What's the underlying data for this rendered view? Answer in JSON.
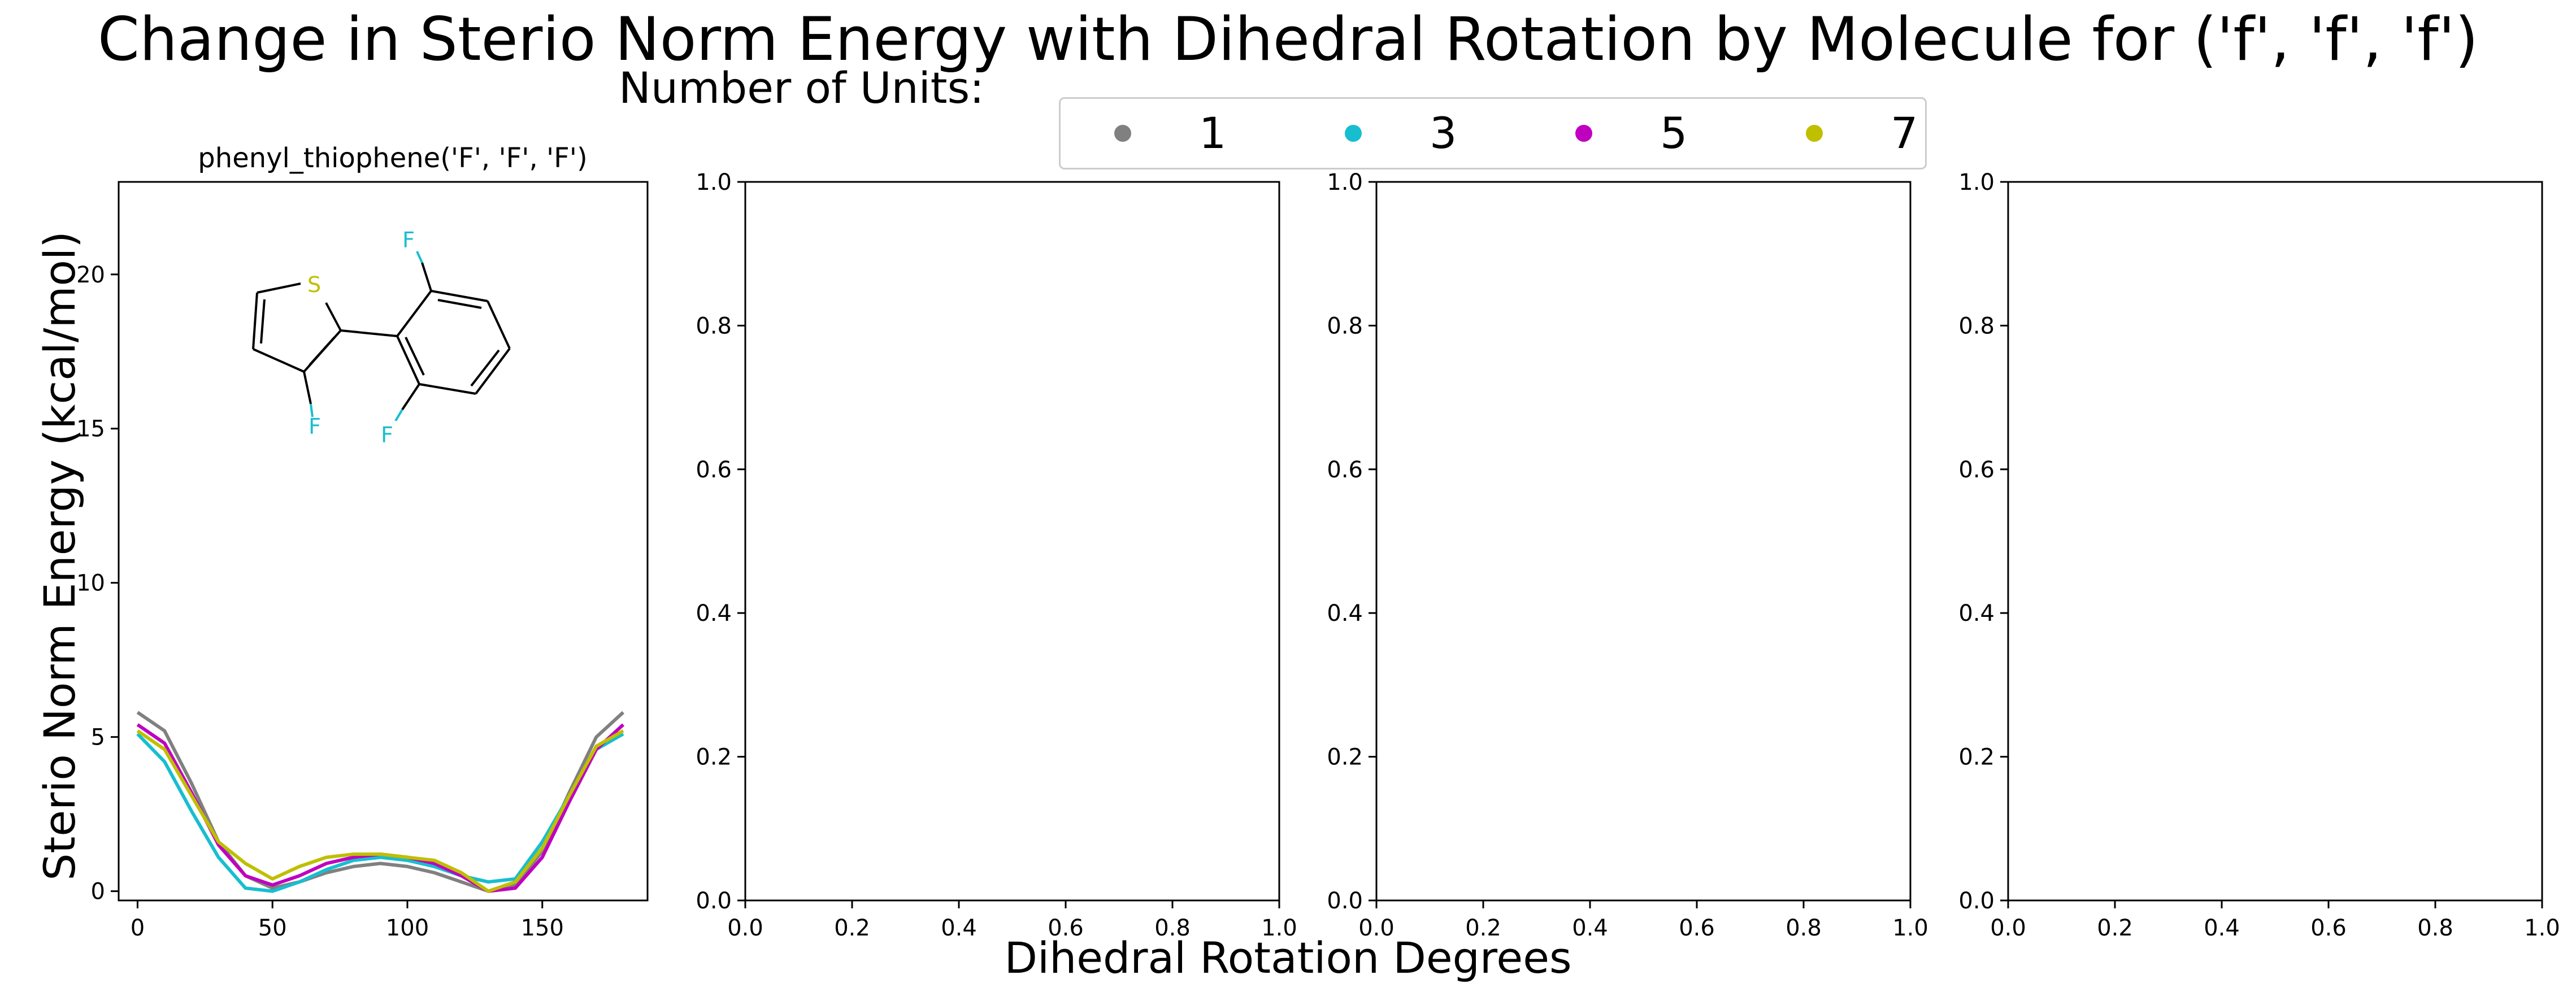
{
  "figure": {
    "title": "Change in Sterio Norm Energy with Dihedral Rotation by Molecule for ('f', 'f', 'f')",
    "xlabel": "Dihedral Rotation Degrees",
    "ylabel": "Sterio Norm Energy (kcal/mol)"
  },
  "legend": {
    "title": "Number of Units:",
    "entries": [
      {
        "label": "1",
        "color": "#808080"
      },
      {
        "label": "3",
        "color": "#17becf"
      },
      {
        "label": "5",
        "color": "#bf00bf"
      },
      {
        "label": "7",
        "color": "#bfbf00"
      }
    ]
  },
  "molecule_labels": {
    "S": "S",
    "F1": "F",
    "F2": "F",
    "F3": "F"
  },
  "chart_data": [
    {
      "type": "line",
      "title": "phenyl_thiophene('F', 'F', 'F')",
      "xlim": [
        -7,
        189
      ],
      "ylim": [
        -0.3,
        23
      ],
      "xticks": [
        0,
        50,
        100,
        150
      ],
      "yticks": [
        0,
        5,
        10,
        15,
        20
      ],
      "grid": false,
      "x": [
        0,
        10,
        20,
        30,
        40,
        50,
        60,
        70,
        80,
        90,
        100,
        110,
        120,
        130,
        140,
        150,
        160,
        170,
        180
      ],
      "series": [
        {
          "name": "1",
          "color": "#808080",
          "values": [
            5.8,
            5.2,
            3.5,
            1.6,
            0.5,
            0.1,
            0.3,
            0.6,
            0.8,
            0.9,
            0.8,
            0.6,
            0.3,
            0.0,
            0.2,
            1.3,
            3.2,
            5.0,
            5.8
          ]
        },
        {
          "name": "3",
          "color": "#17becf",
          "values": [
            5.1,
            4.2,
            2.6,
            1.1,
            0.1,
            0.0,
            0.3,
            0.7,
            1.0,
            1.1,
            1.0,
            0.8,
            0.5,
            0.3,
            0.4,
            1.6,
            3.1,
            4.6,
            5.1
          ]
        },
        {
          "name": "5",
          "color": "#bf00bf",
          "values": [
            5.4,
            4.8,
            3.2,
            1.5,
            0.5,
            0.2,
            0.5,
            0.9,
            1.1,
            1.2,
            1.1,
            0.9,
            0.5,
            0.0,
            0.1,
            1.1,
            2.9,
            4.6,
            5.4
          ]
        },
        {
          "name": "7",
          "color": "#bfbf00",
          "values": [
            5.2,
            4.6,
            3.1,
            1.6,
            0.9,
            0.4,
            0.8,
            1.1,
            1.2,
            1.2,
            1.1,
            1.0,
            0.6,
            0.0,
            0.3,
            1.4,
            3.1,
            4.7,
            5.2
          ]
        }
      ]
    },
    {
      "type": "line",
      "title": "",
      "xlim": [
        0,
        1
      ],
      "ylim": [
        0,
        1
      ],
      "xticks": [
        "0.0",
        "0.2",
        "0.4",
        "0.6",
        "0.8",
        "1.0"
      ],
      "yticks": [
        "0.0",
        "0.2",
        "0.4",
        "0.6",
        "0.8",
        "1.0"
      ],
      "series": []
    },
    {
      "type": "line",
      "title": "",
      "xlim": [
        0,
        1
      ],
      "ylim": [
        0,
        1
      ],
      "xticks": [
        "0.0",
        "0.2",
        "0.4",
        "0.6",
        "0.8",
        "1.0"
      ],
      "yticks": [
        "0.0",
        "0.2",
        "0.4",
        "0.6",
        "0.8",
        "1.0"
      ],
      "series": []
    },
    {
      "type": "line",
      "title": "",
      "xlim": [
        0,
        1
      ],
      "ylim": [
        0,
        1
      ],
      "xticks": [
        "0.0",
        "0.2",
        "0.4",
        "0.6",
        "0.8",
        "1.0"
      ],
      "yticks": [
        "0.0",
        "0.2",
        "0.4",
        "0.6",
        "0.8",
        "1.0"
      ],
      "series": []
    }
  ]
}
